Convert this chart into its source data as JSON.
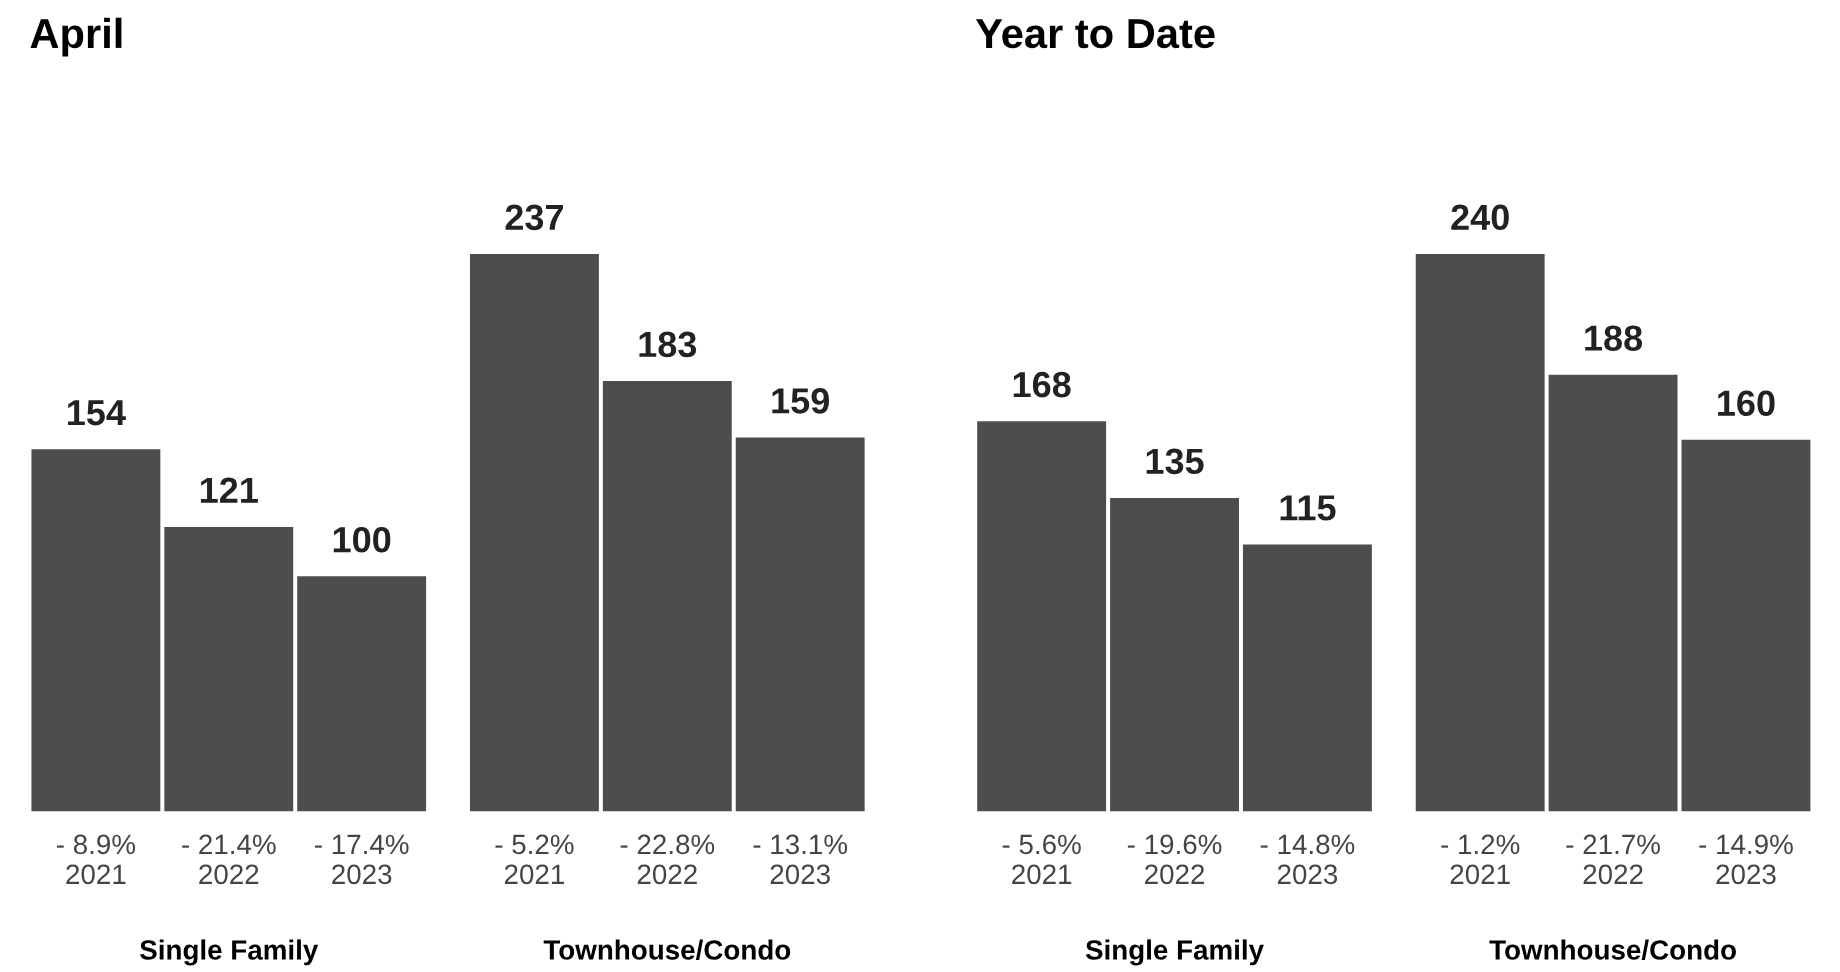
{
  "chart_data": [
    {
      "type": "bar",
      "title": "April",
      "categories": [
        "- 8.9%\n2021",
        "- 21.4%\n2022",
        "- 17.4%\n2023",
        "- 5.2%\n2021",
        "- 22.8%\n2022",
        "- 13.1%\n2023"
      ],
      "values": [
        154,
        121,
        100,
        237,
        183,
        159
      ],
      "color": "#4d4d4d",
      "data_labels": true,
      "tick_labels": "x",
      "annotations": [
        "Single Family",
        "Townhouse/Condo"
      ]
    },
    {
      "type": "bar",
      "title": "Year to Date",
      "categories": [
        "- 5.6%\n2021",
        "- 19.6%\n2022",
        "- 14.8%\n2023",
        "- 1.2%\n2021",
        "- 21.7%\n2022",
        "- 14.9%\n2023"
      ],
      "values": [
        168,
        135,
        115,
        240,
        188,
        160
      ],
      "color": "#4d4d4d",
      "data_labels": true,
      "tick_labels": "x",
      "annotations": [
        "Single Family",
        "Townhouse/Condo"
      ]
    }
  ]
}
